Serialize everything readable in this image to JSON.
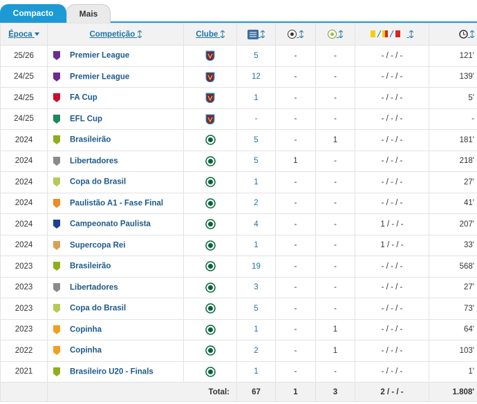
{
  "tabs": [
    "Compacto",
    "Mais"
  ],
  "table": {
    "headers": [
      "Época",
      "Competição",
      "Clube"
    ],
    "rows": [
      [
        "25/26",
        "Premier League",
        "5",
        "-",
        "-",
        "- / - / -",
        "121'"
      ],
      [
        "24/25",
        "Premier League",
        "12",
        "-",
        "-",
        "- / - / -",
        "139'"
      ],
      [
        "24/25",
        "FA Cup",
        "1",
        "-",
        "-",
        "- / - / -",
        "5'"
      ],
      [
        "24/25",
        "EFL Cup",
        "-",
        "-",
        "-",
        "- / - / -",
        "-"
      ],
      [
        "2024",
        "Brasileirão",
        "5",
        "-",
        "1",
        "- / - / -",
        "181'"
      ],
      [
        "2024",
        "Libertadores",
        "5",
        "1",
        "-",
        "- / - / -",
        "218'"
      ],
      [
        "2024",
        "Copa do Brasil",
        "1",
        "-",
        "-",
        "- / - / -",
        "27'"
      ],
      [
        "2024",
        "Paulistão A1 - Fase Final",
        "2",
        "-",
        "-",
        "- / - / -",
        "41'"
      ],
      [
        "2024",
        "Campeonato Paulista",
        "4",
        "-",
        "-",
        "1 / - / -",
        "207'"
      ],
      [
        "2024",
        "Supercopa Rei",
        "1",
        "-",
        "-",
        "1 / - / -",
        "33'"
      ],
      [
        "2023",
        "Brasileirão",
        "19",
        "-",
        "-",
        "- / - / -",
        "568'"
      ],
      [
        "2023",
        "Libertadores",
        "3",
        "-",
        "-",
        "- / - / -",
        "27'"
      ],
      [
        "2023",
        "Copa do Brasil",
        "5",
        "-",
        "-",
        "- / - / -",
        "73'"
      ],
      [
        "2023",
        "Copinha",
        "1",
        "-",
        "1",
        "- / - / -",
        "64'"
      ],
      [
        "2022",
        "Copinha",
        "2",
        "-",
        "1",
        "- / - / -",
        "103'"
      ],
      [
        "2021",
        "Brasileiro U20 - Finals",
        "1",
        "-",
        "-",
        "- / - / -",
        "1'"
      ]
    ],
    "total": {
      "label": "Total:",
      "values": [
        "67",
        "1",
        "3",
        "2 / - / -",
        "1.808'"
      ]
    }
  }
}
